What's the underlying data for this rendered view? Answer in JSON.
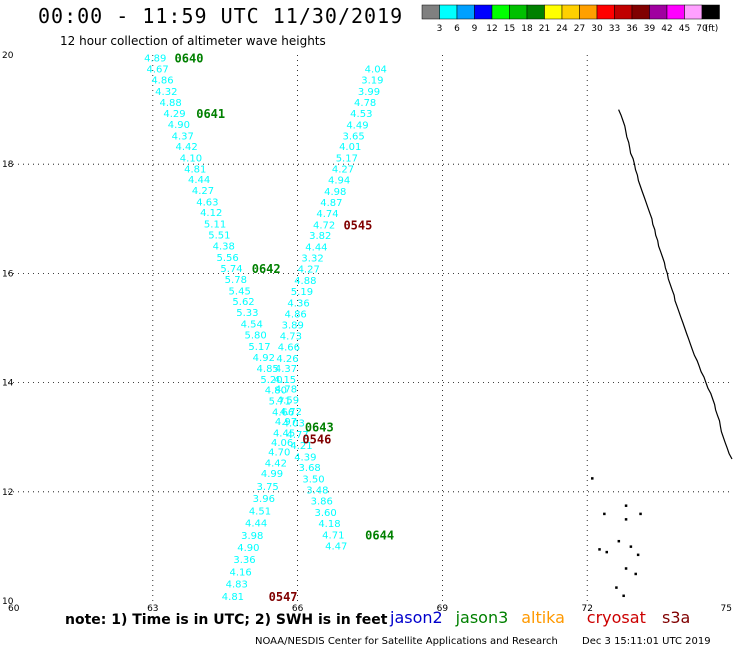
{
  "header": {
    "title": "00:00 - 11:59 UTC 11/30/2019",
    "subtitle": "12 hour collection of altimeter wave heights"
  },
  "color_scale": {
    "unit": "(ft)",
    "bins": [
      {
        "label": "3",
        "color": "#808080"
      },
      {
        "label": "6",
        "color": "#00ffff"
      },
      {
        "label": "9",
        "color": "#00a0ff"
      },
      {
        "label": "12",
        "color": "#0000ff"
      },
      {
        "label": "15",
        "color": "#00ff00"
      },
      {
        "label": "18",
        "color": "#00c000"
      },
      {
        "label": "21",
        "color": "#008000"
      },
      {
        "label": "24",
        "color": "#ffff00"
      },
      {
        "label": "27",
        "color": "#ffd000"
      },
      {
        "label": "30",
        "color": "#ffa000"
      },
      {
        "label": "33",
        "color": "#ff0000"
      },
      {
        "label": "36",
        "color": "#c00000"
      },
      {
        "label": "39",
        "color": "#800000"
      },
      {
        "label": "42",
        "color": "#a000a0"
      },
      {
        "label": "45",
        "color": "#ff00ff"
      },
      {
        "label": "70",
        "color": "#ffa0ff"
      },
      {
        "label": "",
        "color": "#000000"
      }
    ]
  },
  "footer": {
    "note": "note: 1) Time is in UTC; 2) SWH is in feet",
    "credit": "NOAA/NESDIS Center for Satellite Applications and Research",
    "generated": "Dec  3 15:11:01 UTC 2019",
    "satellites": [
      {
        "name": "jason2",
        "color": "#0000cc"
      },
      {
        "name": "jason3",
        "color": "#008000"
      },
      {
        "name": "altika",
        "color": "#ff9900"
      },
      {
        "name": "cryosat",
        "color": "#cc0000"
      },
      {
        "name": "s3a",
        "color": "#800000"
      }
    ]
  },
  "chart_data": {
    "type": "scatter",
    "title": "00:00 - 11:59 UTC 11/30/2019",
    "xlim": [
      60,
      75
    ],
    "ylim": [
      10,
      20
    ],
    "x_ticks": [
      "60",
      "63",
      "66",
      "69",
      "72",
      "75"
    ],
    "y_ticks": [
      "10",
      "12",
      "14",
      "16",
      "18",
      "20"
    ],
    "grid": true,
    "label_color": "#00ffff",
    "series": [
      {
        "points": [
          {
            "x": 63.05,
            "y": 19.95,
            "v": "4.89"
          },
          {
            "x": 63.1,
            "y": 19.75,
            "v": "4.67"
          },
          {
            "x": 63.2,
            "y": 19.55,
            "v": "4.86"
          },
          {
            "x": 63.28,
            "y": 19.34,
            "v": "4.32"
          },
          {
            "x": 63.37,
            "y": 19.14,
            "v": "4.88"
          },
          {
            "x": 63.45,
            "y": 18.94,
            "v": "4.29"
          },
          {
            "x": 63.54,
            "y": 18.74,
            "v": "4.90"
          },
          {
            "x": 63.62,
            "y": 18.53,
            "v": "4.37"
          },
          {
            "x": 63.7,
            "y": 18.33,
            "v": "4.42"
          },
          {
            "x": 63.79,
            "y": 18.12,
            "v": "4.10"
          },
          {
            "x": 63.88,
            "y": 17.92,
            "v": "4.81"
          },
          {
            "x": 63.96,
            "y": 17.73,
            "v": "4.44"
          },
          {
            "x": 64.04,
            "y": 17.53,
            "v": "4.27"
          },
          {
            "x": 64.13,
            "y": 17.32,
            "v": "4.63"
          },
          {
            "x": 64.21,
            "y": 17.12,
            "v": "4.12"
          },
          {
            "x": 64.29,
            "y": 16.91,
            "v": "5.11"
          },
          {
            "x": 64.38,
            "y": 16.71,
            "v": "5.51"
          },
          {
            "x": 64.47,
            "y": 16.51,
            "v": "4.38"
          },
          {
            "x": 64.55,
            "y": 16.3,
            "v": "5.56"
          },
          {
            "x": 64.63,
            "y": 16.1,
            "v": "5.74"
          },
          {
            "x": 64.72,
            "y": 15.9,
            "v": "5.78"
          },
          {
            "x": 64.8,
            "y": 15.69,
            "v": "5.45"
          },
          {
            "x": 64.88,
            "y": 15.49,
            "v": "5.62"
          },
          {
            "x": 64.96,
            "y": 15.29,
            "v": "5.33"
          },
          {
            "x": 65.05,
            "y": 15.08,
            "v": "4.54"
          },
          {
            "x": 65.13,
            "y": 14.88,
            "v": "5.80"
          },
          {
            "x": 65.21,
            "y": 14.67,
            "v": "5.17"
          },
          {
            "x": 65.3,
            "y": 14.47,
            "v": "4.92"
          },
          {
            "x": 65.38,
            "y": 14.27,
            "v": "4.85"
          },
          {
            "x": 65.46,
            "y": 14.07,
            "v": "5.20"
          },
          {
            "x": 65.55,
            "y": 13.87,
            "v": "4.80"
          },
          {
            "x": 65.63,
            "y": 13.67,
            "v": "5.71"
          },
          {
            "x": 65.7,
            "y": 13.47,
            "v": "4.66"
          },
          {
            "x": 65.76,
            "y": 13.3,
            "v": "4.97"
          },
          {
            "x": 65.72,
            "y": 13.09,
            "v": "4.45"
          },
          {
            "x": 65.68,
            "y": 12.91,
            "v": "4.06"
          },
          {
            "x": 65.62,
            "y": 12.74,
            "v": "4.70"
          },
          {
            "x": 65.55,
            "y": 12.54,
            "v": "4.42"
          },
          {
            "x": 65.47,
            "y": 12.34,
            "v": "4.99"
          },
          {
            "x": 65.38,
            "y": 12.11,
            "v": "3.75"
          },
          {
            "x": 65.3,
            "y": 11.89,
            "v": "3.96"
          },
          {
            "x": 65.22,
            "y": 11.66,
            "v": "4.51"
          },
          {
            "x": 65.14,
            "y": 11.44,
            "v": "4.44"
          },
          {
            "x": 65.06,
            "y": 11.21,
            "v": "3.98"
          },
          {
            "x": 64.98,
            "y": 10.99,
            "v": "4.90"
          },
          {
            "x": 64.9,
            "y": 10.77,
            "v": "3.36"
          },
          {
            "x": 64.82,
            "y": 10.54,
            "v": "4.16"
          },
          {
            "x": 64.74,
            "y": 10.32,
            "v": "4.83"
          },
          {
            "x": 64.66,
            "y": 10.09,
            "v": "4.81"
          }
        ]
      },
      {
        "points": [
          {
            "x": 67.62,
            "y": 19.75,
            "v": "4.04"
          },
          {
            "x": 67.55,
            "y": 19.55,
            "v": "3.19"
          },
          {
            "x": 67.48,
            "y": 19.34,
            "v": "3.99"
          },
          {
            "x": 67.4,
            "y": 19.14,
            "v": "4.78"
          },
          {
            "x": 67.32,
            "y": 18.94,
            "v": "4.53"
          },
          {
            "x": 67.24,
            "y": 18.73,
            "v": "4.49"
          },
          {
            "x": 67.16,
            "y": 18.53,
            "v": "3.65"
          },
          {
            "x": 67.09,
            "y": 18.33,
            "v": "4.01"
          },
          {
            "x": 67.02,
            "y": 18.12,
            "v": "5.17"
          },
          {
            "x": 66.94,
            "y": 17.92,
            "v": "4.27"
          },
          {
            "x": 66.86,
            "y": 17.72,
            "v": "4.94"
          },
          {
            "x": 66.78,
            "y": 17.51,
            "v": "4.98"
          },
          {
            "x": 66.7,
            "y": 17.31,
            "v": "4.87"
          },
          {
            "x": 66.62,
            "y": 17.11,
            "v": "4.74"
          },
          {
            "x": 66.55,
            "y": 16.9,
            "v": "4.72"
          },
          {
            "x": 66.47,
            "y": 16.7,
            "v": "3.82"
          },
          {
            "x": 66.39,
            "y": 16.49,
            "v": "4.44"
          },
          {
            "x": 66.31,
            "y": 16.29,
            "v": "3.32"
          },
          {
            "x": 66.23,
            "y": 16.09,
            "v": "4.27"
          },
          {
            "x": 66.16,
            "y": 15.88,
            "v": "4.88"
          },
          {
            "x": 66.09,
            "y": 15.68,
            "v": "5.19"
          },
          {
            "x": 66.02,
            "y": 15.47,
            "v": "4.36"
          },
          {
            "x": 65.96,
            "y": 15.27,
            "v": "4.86"
          },
          {
            "x": 65.9,
            "y": 15.06,
            "v": "3.89"
          },
          {
            "x": 65.86,
            "y": 14.86,
            "v": "4.73"
          },
          {
            "x": 65.82,
            "y": 14.66,
            "v": "4.66"
          },
          {
            "x": 65.79,
            "y": 14.45,
            "v": "4.26"
          },
          {
            "x": 65.76,
            "y": 14.27,
            "v": "4.37"
          },
          {
            "x": 65.74,
            "y": 14.07,
            "v": "4.15"
          },
          {
            "x": 65.76,
            "y": 13.89,
            "v": "4.78"
          },
          {
            "x": 65.8,
            "y": 13.69,
            "v": "4.59"
          },
          {
            "x": 65.86,
            "y": 13.48,
            "v": "4.72"
          },
          {
            "x": 65.92,
            "y": 13.27,
            "v": "4.03"
          },
          {
            "x": 66.0,
            "y": 13.06,
            "v": "4.77"
          },
          {
            "x": 66.08,
            "y": 12.86,
            "v": "4.21"
          },
          {
            "x": 66.16,
            "y": 12.65,
            "v": "4.39"
          },
          {
            "x": 66.25,
            "y": 12.45,
            "v": "3.68"
          },
          {
            "x": 66.33,
            "y": 12.24,
            "v": "3.50"
          },
          {
            "x": 66.41,
            "y": 12.04,
            "v": "3.48"
          },
          {
            "x": 66.5,
            "y": 11.84,
            "v": "3.86"
          },
          {
            "x": 66.58,
            "y": 11.63,
            "v": "3.60"
          },
          {
            "x": 66.66,
            "y": 11.43,
            "v": "4.18"
          },
          {
            "x": 66.74,
            "y": 11.22,
            "v": "4.71"
          },
          {
            "x": 66.8,
            "y": 11.02,
            "v": "4.47"
          }
        ]
      }
    ],
    "pass_labels": [
      {
        "text": "0640",
        "x": 63.45,
        "y": 19.95,
        "color": "#008000"
      },
      {
        "text": "0641",
        "x": 63.9,
        "y": 18.94,
        "color": "#008000"
      },
      {
        "text": "0545",
        "x": 66.95,
        "y": 16.9,
        "color": "#800000"
      },
      {
        "text": "0642",
        "x": 65.05,
        "y": 16.1,
        "color": "#008000"
      },
      {
        "text": "0643",
        "x": 66.15,
        "y": 13.2,
        "color": "#008000"
      },
      {
        "text": "0546",
        "x": 66.1,
        "y": 12.98,
        "color": "#800000"
      },
      {
        "text": "0644",
        "x": 67.4,
        "y": 11.22,
        "color": "#008000"
      },
      {
        "text": "0547",
        "x": 65.4,
        "y": 10.09,
        "color": "#800000"
      }
    ],
    "coastline": [
      [
        72.65,
        19.0
      ],
      [
        72.7,
        18.9
      ],
      [
        72.74,
        18.8
      ],
      [
        72.78,
        18.7
      ],
      [
        72.8,
        18.6
      ],
      [
        72.82,
        18.5
      ],
      [
        72.86,
        18.4
      ],
      [
        72.88,
        18.3
      ],
      [
        72.9,
        18.2
      ],
      [
        72.95,
        18.1
      ],
      [
        72.98,
        18.0
      ],
      [
        73.0,
        17.9
      ],
      [
        73.04,
        17.8
      ],
      [
        73.06,
        17.7
      ],
      [
        73.1,
        17.6
      ],
      [
        73.14,
        17.5
      ],
      [
        73.18,
        17.4
      ],
      [
        73.22,
        17.3
      ],
      [
        73.26,
        17.2
      ],
      [
        73.3,
        17.1
      ],
      [
        73.34,
        17.0
      ],
      [
        73.36,
        16.9
      ],
      [
        73.4,
        16.8
      ],
      [
        73.42,
        16.7
      ],
      [
        73.46,
        16.6
      ],
      [
        73.48,
        16.5
      ],
      [
        73.52,
        16.4
      ],
      [
        73.56,
        16.3
      ],
      [
        73.6,
        16.2
      ],
      [
        73.62,
        16.1
      ],
      [
        73.66,
        16.0
      ],
      [
        73.68,
        15.9
      ],
      [
        73.72,
        15.8
      ],
      [
        73.76,
        15.7
      ],
      [
        73.8,
        15.6
      ],
      [
        73.82,
        15.5
      ],
      [
        73.86,
        15.4
      ],
      [
        73.9,
        15.3
      ],
      [
        73.94,
        15.2
      ],
      [
        73.98,
        15.1
      ],
      [
        74.02,
        15.0
      ],
      [
        74.06,
        14.9
      ],
      [
        74.1,
        14.8
      ],
      [
        74.14,
        14.7
      ],
      [
        74.18,
        14.6
      ],
      [
        74.22,
        14.5
      ],
      [
        74.28,
        14.4
      ],
      [
        74.32,
        14.3
      ],
      [
        74.36,
        14.2
      ],
      [
        74.42,
        14.1
      ],
      [
        74.46,
        14.0
      ],
      [
        74.5,
        13.9
      ],
      [
        74.56,
        13.8
      ],
      [
        74.6,
        13.7
      ],
      [
        74.64,
        13.6
      ],
      [
        74.66,
        13.5
      ],
      [
        74.7,
        13.4
      ],
      [
        74.74,
        13.3
      ],
      [
        74.76,
        13.2
      ],
      [
        74.78,
        13.1
      ],
      [
        74.82,
        13.0
      ],
      [
        74.86,
        12.9
      ],
      [
        74.9,
        12.8
      ],
      [
        74.94,
        12.7
      ],
      [
        75.0,
        12.6
      ]
    ],
    "islands": [
      [
        72.1,
        12.25
      ],
      [
        72.35,
        11.6
      ],
      [
        72.8,
        11.75
      ],
      [
        73.1,
        11.6
      ],
      [
        72.8,
        11.5
      ],
      [
        72.25,
        10.95
      ],
      [
        72.4,
        10.9
      ],
      [
        72.65,
        11.1
      ],
      [
        72.9,
        11.0
      ],
      [
        73.05,
        10.85
      ],
      [
        72.8,
        10.6
      ],
      [
        73.0,
        10.5
      ],
      [
        72.6,
        10.25
      ],
      [
        72.75,
        10.1
      ]
    ]
  }
}
